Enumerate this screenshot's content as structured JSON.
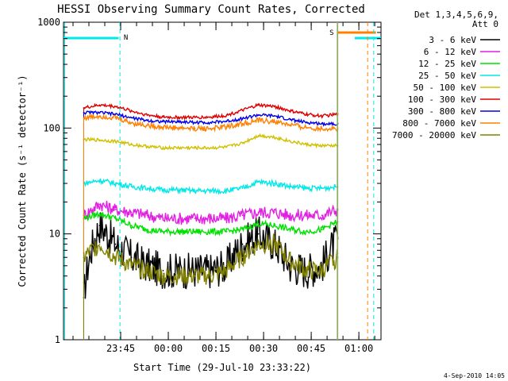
{
  "chart_data": {
    "type": "line",
    "title": "HESSI Observing Summary Count Rates, Corrected",
    "xlabel": "Start Time (29-Jul-10 23:33:22)",
    "ylabel": "Corrected Count Rate (s⁻¹ detector⁻¹)",
    "yscale": "log",
    "ylim": [
      1,
      1000
    ],
    "xlim_minutes_after_start": [
      -6.37,
      93.6
    ],
    "yticks": [
      "1",
      "10",
      "100",
      "1000"
    ],
    "xticks": [
      {
        "label": "23:45",
        "minute": 11.63
      },
      {
        "label": "00:00",
        "minute": 26.63
      },
      {
        "label": "00:15",
        "minute": 41.63
      },
      {
        "label": "00:30",
        "minute": 56.63
      },
      {
        "label": "00:45",
        "minute": 71.63
      },
      {
        "label": "01:00",
        "minute": 86.63
      }
    ],
    "grid": false,
    "legend_placement": "right, outside plot",
    "legend_header": [
      "Det 1,3,4,5,6,9,",
      "Att 0"
    ],
    "footer": "4-Sep-2010 14:05",
    "x_unit_note": "x values are minutes after 29-Jul-10 23:33:22",
    "x": [
      0,
      5,
      10,
      15,
      20,
      25,
      30,
      35,
      40,
      45,
      50,
      55,
      60,
      65,
      70,
      75,
      80
    ],
    "series": [
      {
        "name": "3 - 6 keV",
        "color": "#000000",
        "values": [
          2.5,
          12,
          8,
          6,
          5,
          4.5,
          4.5,
          4.5,
          4.5,
          5,
          8,
          10,
          8,
          5,
          4.5,
          5,
          9
        ]
      },
      {
        "name": "6 - 12 keV",
        "color": "#e020e0",
        "values": [
          15,
          19,
          17,
          16,
          15,
          14,
          14,
          14,
          14,
          14,
          15,
          16,
          16,
          15,
          15,
          15,
          17
        ]
      },
      {
        "name": "12 - 25 keV",
        "color": "#00e000",
        "values": [
          14,
          15.5,
          14,
          12,
          11,
          10.5,
          10.5,
          10.5,
          10.5,
          10.5,
          11,
          12.5,
          12,
          11,
          10.5,
          11,
          13
        ]
      },
      {
        "name": "25 - 50 keV",
        "color": "#00e8e8",
        "values": [
          30,
          32,
          30,
          28,
          27,
          26,
          26,
          25.5,
          25.5,
          25.5,
          27,
          31,
          30,
          28,
          27,
          27,
          28
        ]
      },
      {
        "name": "50 - 100 keV",
        "color": "#d0c000",
        "values": [
          78,
          77,
          75,
          70,
          67,
          65,
          65,
          65,
          65,
          66,
          72,
          85,
          82,
          75,
          70,
          68,
          68
        ]
      },
      {
        "name": "100 - 300 keV",
        "color": "#e00000",
        "values": [
          155,
          165,
          160,
          145,
          133,
          127,
          126,
          126,
          127,
          132,
          147,
          165,
          160,
          145,
          135,
          130,
          135
        ]
      },
      {
        "name": "300 - 800 keV",
        "color": "#0000e8",
        "values": [
          140,
          140,
          135,
          125,
          118,
          115,
          115,
          113,
          113,
          116,
          123,
          133,
          130,
          120,
          113,
          110,
          110
        ]
      },
      {
        "name": "800 - 7000 keV",
        "color": "#ff8000",
        "values": [
          125,
          130,
          125,
          112,
          106,
          102,
          100,
          99,
          99,
          103,
          110,
          118,
          115,
          107,
          101,
          99,
          98
        ]
      },
      {
        "name": "7000 - 20000 keV",
        "color": "#808000",
        "values": [
          6,
          8,
          6,
          5,
          4.5,
          4,
          4,
          4,
          4,
          4.5,
          6,
          8,
          8,
          5.5,
          4.5,
          4.5,
          6
        ]
      }
    ],
    "annotations": [
      {
        "text": "N",
        "color": "#00e8e8"
      },
      {
        "text": "S",
        "color": "#ff8000"
      }
    ],
    "night_bars": {
      "color": "#00e8e8",
      "ranges_minutes": [
        [
          -6.37,
          11
        ],
        [
          85.3,
          93.6
        ]
      ]
    },
    "saa_bar": {
      "color": "#ff8000",
      "range_minutes": [
        80,
        92
      ]
    },
    "markers_minutes": {
      "cyan_solid": [
        -6,
        79.8
      ],
      "cyan_dashed": [
        11.4,
        91.3
      ],
      "orange_solid": [
        80
      ],
      "orange_dashed": [
        89.4
      ]
    }
  }
}
